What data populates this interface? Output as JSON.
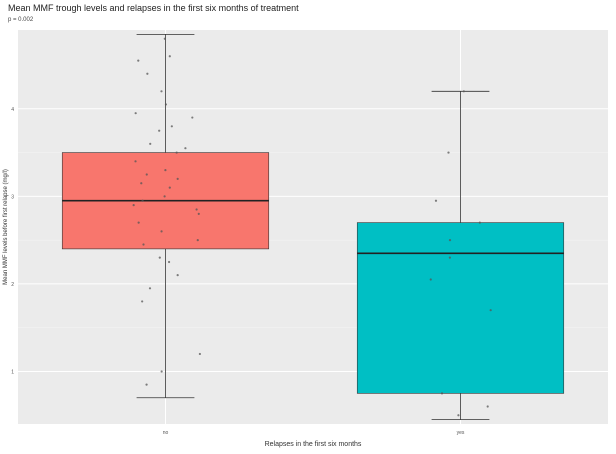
{
  "chart_data": {
    "type": "box",
    "title": "Mean MMF trough levels and relapses in the first six months of treatment",
    "subtitle": "p = 0.002",
    "xlabel": "Relapses in the first six months",
    "ylabel": "Mean MMF levels before first relapse (mg/l)",
    "categories": [
      "no",
      "yes"
    ],
    "ylim": [
      0.4,
      4.9
    ],
    "y_ticks": [
      1,
      2,
      3,
      4
    ],
    "grid": true,
    "box_colors": [
      "#F8766D",
      "#00BFC4"
    ],
    "boxes": [
      {
        "category": "no",
        "whisker_low": 0.7,
        "q1": 2.4,
        "median": 2.95,
        "q3": 3.5,
        "whisker_high": 4.85
      },
      {
        "category": "yes",
        "whisker_low": 0.45,
        "q1": 0.75,
        "median": 2.35,
        "q3": 2.7,
        "whisker_high": 4.2
      }
    ],
    "points": [
      {
        "category": "no",
        "values": [
          4.8,
          4.6,
          4.55,
          4.4,
          4.2,
          4.05,
          3.95,
          3.9,
          3.8,
          3.75,
          3.6,
          3.55,
          3.5,
          3.4,
          3.3,
          3.25,
          3.2,
          3.15,
          3.1,
          3.0,
          2.95,
          2.9,
          2.85,
          2.8,
          2.7,
          2.6,
          2.5,
          2.45,
          2.3,
          2.25,
          2.1,
          1.95,
          1.8,
          1.2,
          1.0,
          0.85
        ]
      },
      {
        "category": "yes",
        "values": [
          4.2,
          3.5,
          2.95,
          2.7,
          2.5,
          2.3,
          2.05,
          1.7,
          0.75,
          0.6,
          0.5
        ]
      }
    ]
  }
}
